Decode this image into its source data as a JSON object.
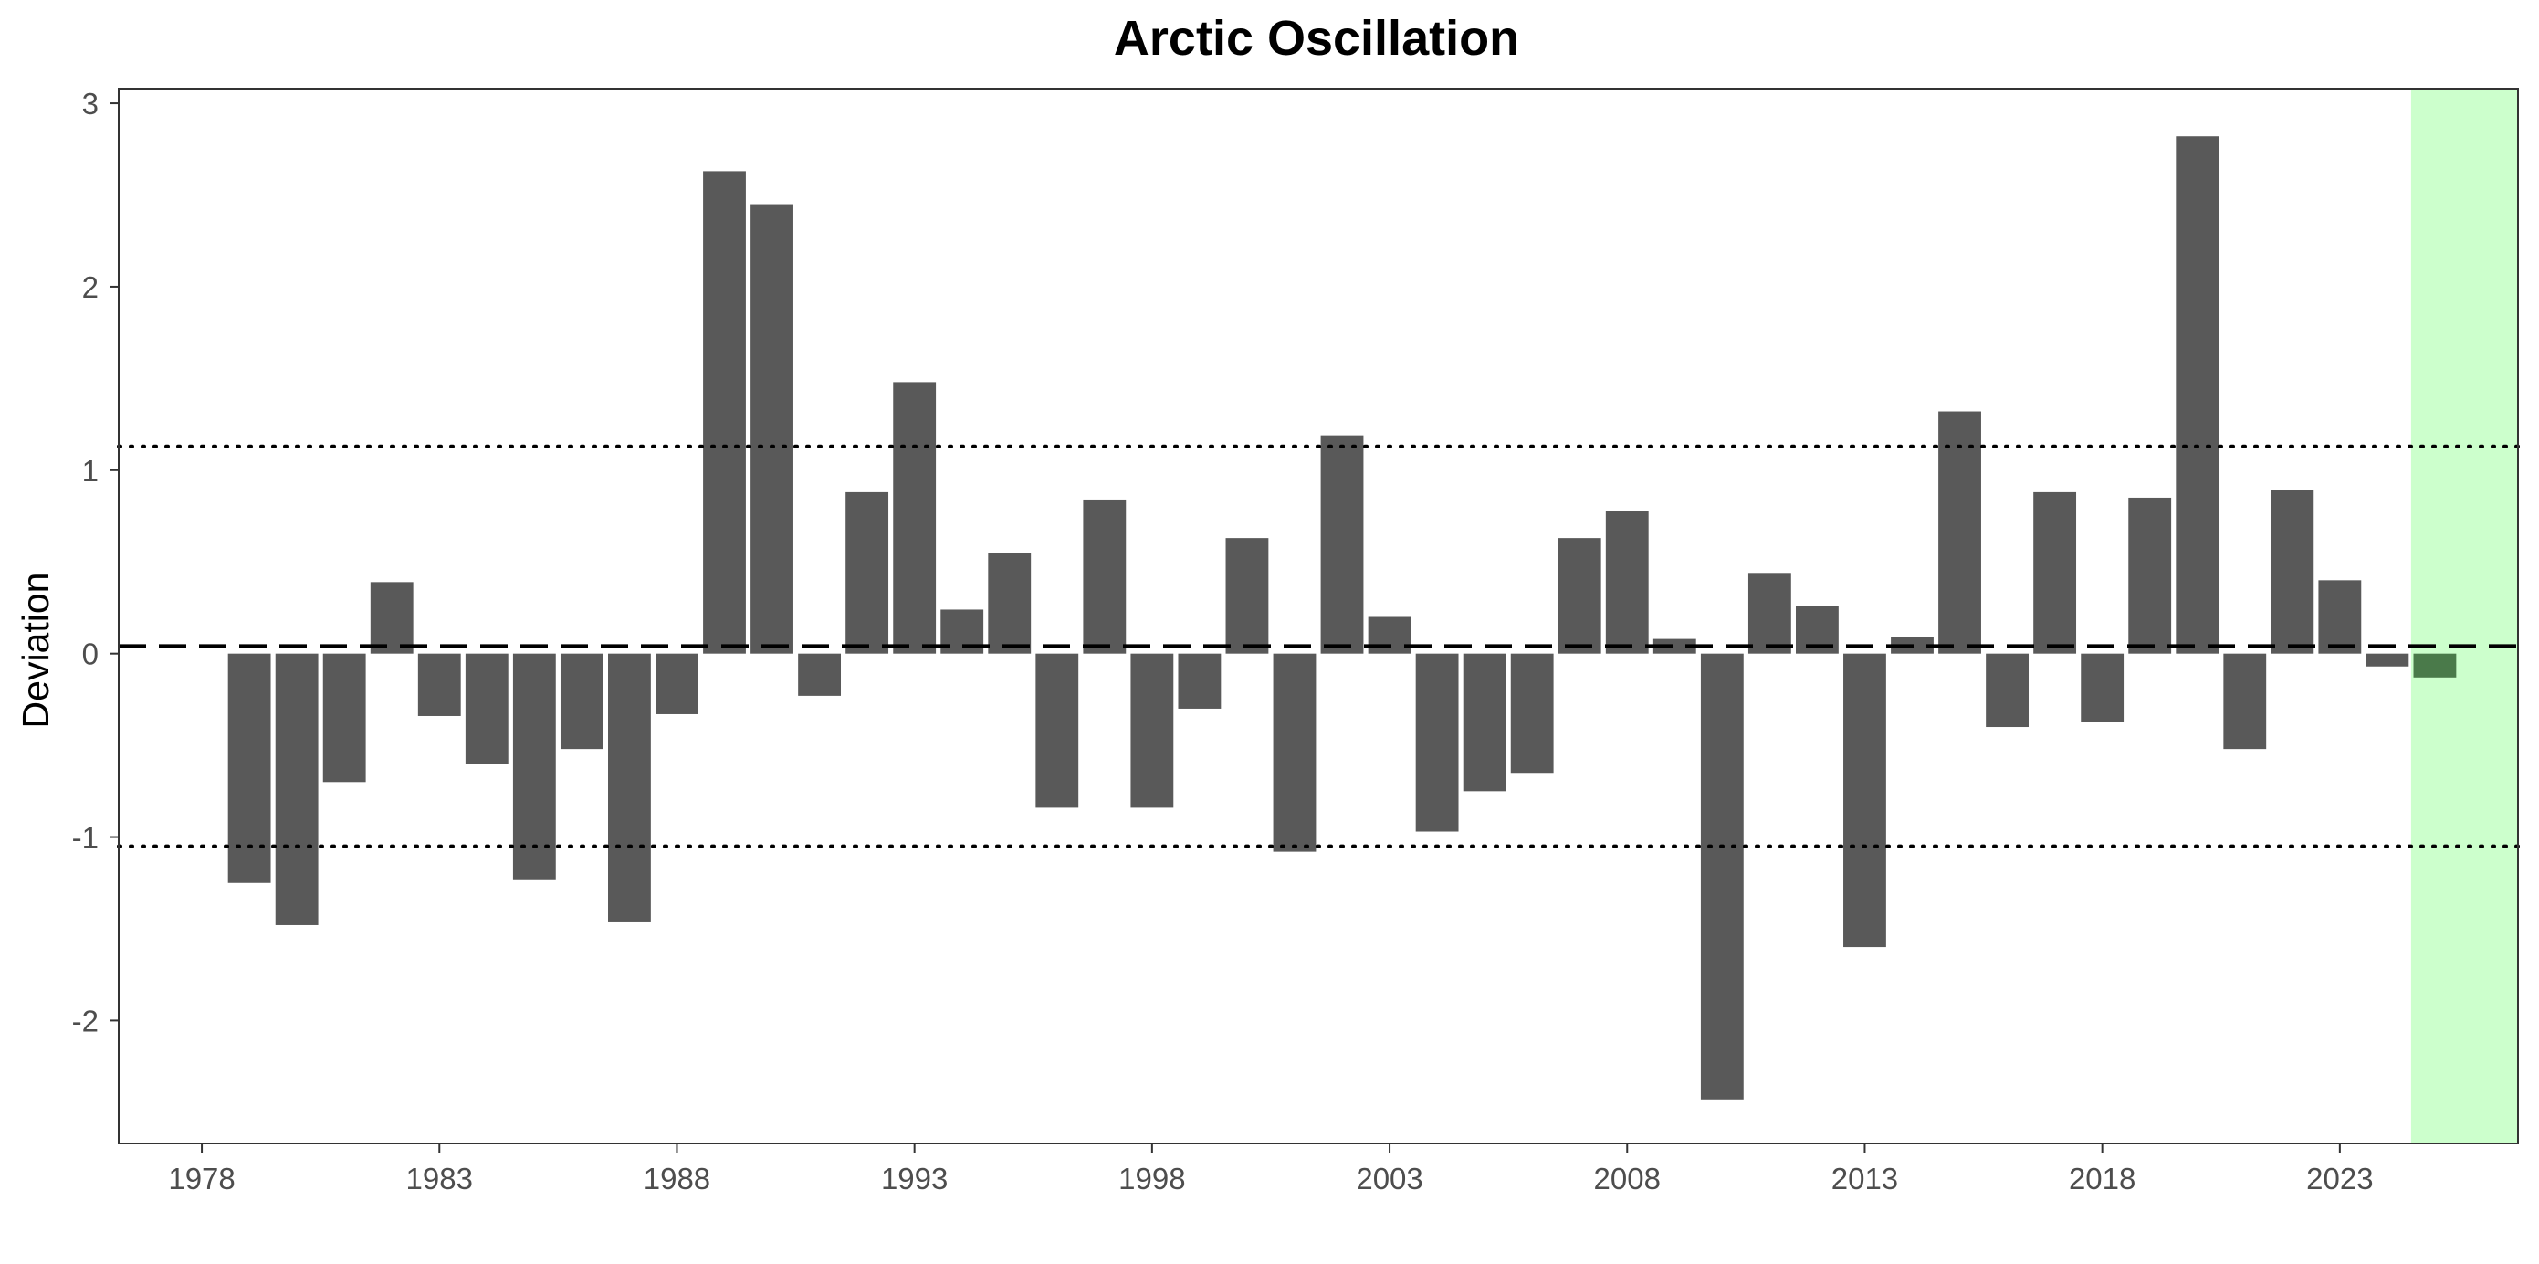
{
  "chart_data": {
    "type": "bar",
    "title": "Arctic Oscillation",
    "xlabel": "",
    "ylabel": "Deviation",
    "x_ticks": [
      1978,
      1983,
      1988,
      1993,
      1998,
      2003,
      2008,
      2013,
      2018,
      2023
    ],
    "y_ticks": [
      -2,
      -1,
      0,
      1,
      2,
      3
    ],
    "xlim": [
      1976.25,
      2026.75
    ],
    "ylim": [
      -2.67,
      3.08
    ],
    "grid": false,
    "bar_color": "#595959",
    "highlight_color": "#4a7a4a",
    "highlight_region": {
      "x_from": 2024.5,
      "x_to": 2026.75,
      "color": "#ccffcc"
    },
    "reference_lines": [
      {
        "style": "dashed",
        "value": 0.04
      },
      {
        "style": "dotted",
        "value": 1.13
      },
      {
        "style": "dotted",
        "value": -1.05
      }
    ],
    "series": [
      {
        "years": [
          1979,
          1980,
          1981,
          1982,
          1983,
          1984,
          1985,
          1986,
          1987,
          1988,
          1989,
          1990,
          1991,
          1992,
          1993,
          1994,
          1995,
          1996,
          1997,
          1998,
          1999,
          2000,
          2001,
          2002,
          2003,
          2004,
          2005,
          2006,
          2007,
          2008,
          2009,
          2010,
          2011,
          2012,
          2013,
          2014,
          2015,
          2016,
          2017,
          2018,
          2019,
          2020,
          2021,
          2022,
          2023,
          2024,
          2025
        ],
        "values": [
          -1.25,
          -1.48,
          -0.7,
          0.39,
          -0.34,
          -0.6,
          -1.23,
          -0.52,
          -1.46,
          -0.33,
          2.63,
          2.45,
          -0.23,
          0.88,
          1.48,
          0.24,
          0.55,
          -0.84,
          0.84,
          -0.84,
          -0.3,
          0.63,
          -1.08,
          1.19,
          0.2,
          -0.97,
          -0.75,
          -0.65,
          0.63,
          0.78,
          0.08,
          -2.43,
          0.44,
          0.26,
          -1.6,
          0.09,
          1.32,
          -0.4,
          0.88,
          -0.37,
          0.85,
          2.82,
          -0.52,
          0.89,
          0.4,
          -0.07,
          -0.13
        ]
      }
    ]
  }
}
